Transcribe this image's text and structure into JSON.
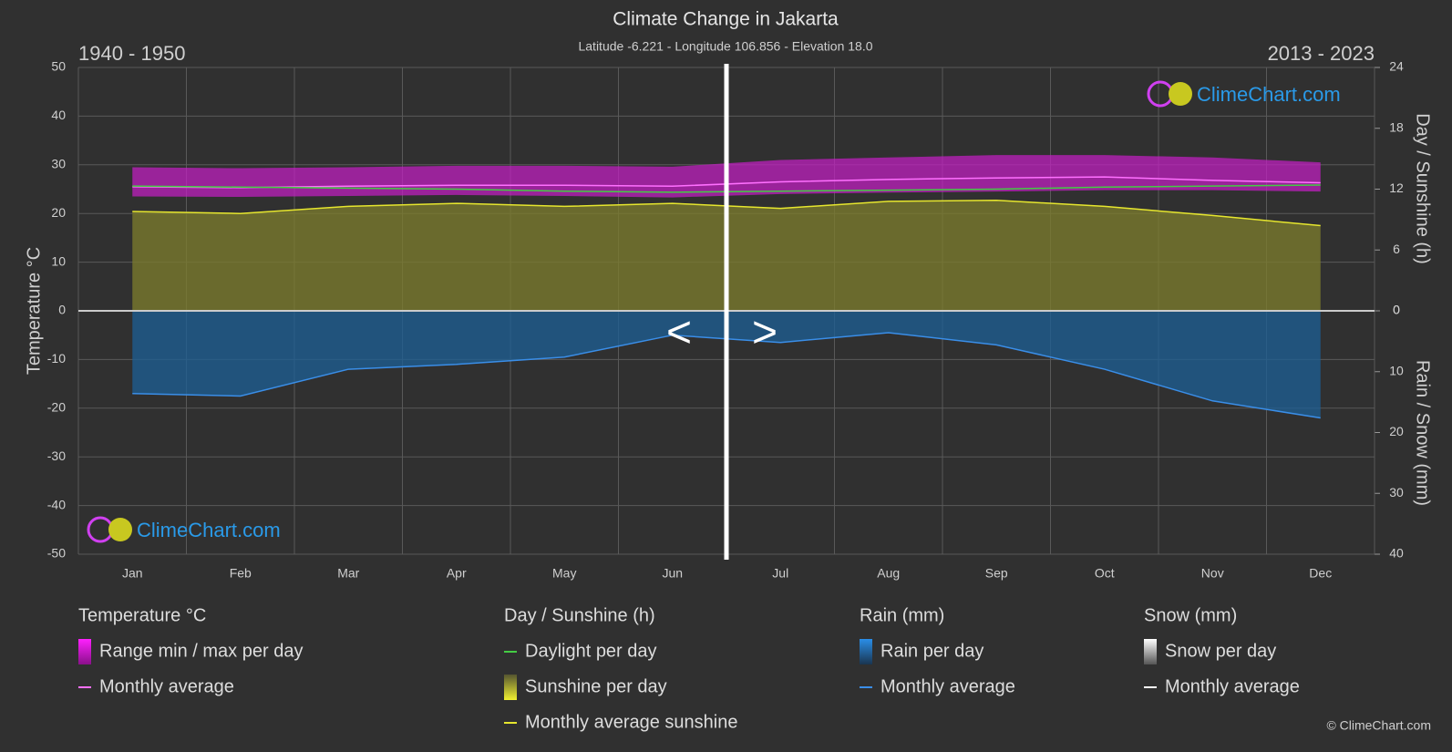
{
  "chart_data": {
    "type": "line",
    "title": "Climate Change in Jakarta",
    "subtitle": "Latitude -6.221 - Longitude 106.856 - Elevation 18.0",
    "period_left": "1940 - 1950",
    "period_right": "2013 - 2023",
    "watermark": "ClimeChart.com",
    "copyright": "© ClimeChart.com",
    "nav_prev": "<",
    "nav_next": ">",
    "ylabel": "Temperature °C",
    "y2label": "Day / Sunshine (h)",
    "y3label": "Rain / Snow (mm)",
    "categories": [
      "Jan",
      "Feb",
      "Mar",
      "Apr",
      "May",
      "Jun",
      "Jul",
      "Aug",
      "Sep",
      "Oct",
      "Nov",
      "Dec"
    ],
    "ylim": [
      -50,
      50
    ],
    "yticks": [
      -50,
      -40,
      -30,
      -20,
      -10,
      0,
      10,
      20,
      30,
      40,
      50
    ],
    "y2lim": [
      0,
      24
    ],
    "y2ticks": [
      0,
      6,
      12,
      18,
      24
    ],
    "y3lim": [
      0,
      40
    ],
    "y3ticks": [
      0,
      10,
      20,
      30,
      40
    ],
    "grid": true,
    "legend_groups": [
      "Temperature °C",
      "Day / Sunshine (h)",
      "Rain (mm)",
      "Snow (mm)"
    ],
    "series": [
      {
        "name": "Range min / max per day",
        "group": 0,
        "kind": "band",
        "color": "#c81ec8",
        "values": [
          29.5,
          29.3,
          29.5,
          29.8,
          29.8,
          29.6,
          31.0,
          31.5,
          32.0,
          32.0,
          31.5,
          30.5
        ],
        "low": [
          23.5,
          23.4,
          23.6,
          23.8,
          23.6,
          23.3,
          24.0,
          24.3,
          24.5,
          24.8,
          24.8,
          24.5
        ]
      },
      {
        "name": "Monthly average",
        "group": 0,
        "kind": "line",
        "color": "#ff70ff",
        "values": [
          25.5,
          25.3,
          25.6,
          25.8,
          25.8,
          25.6,
          26.5,
          27.0,
          27.3,
          27.5,
          26.8,
          26.3
        ]
      },
      {
        "name": "Daylight per day",
        "group": 1,
        "kind": "line",
        "axis": "y2",
        "color": "#44cc44",
        "values": [
          12.3,
          12.2,
          12.1,
          12.0,
          11.8,
          11.7,
          11.8,
          11.9,
          12.0,
          12.2,
          12.3,
          12.4
        ]
      },
      {
        "name": "Sunshine per day",
        "group": 1,
        "kind": "area",
        "axis": "y2",
        "color": "#7d7d2c",
        "values": [
          9.8,
          9.6,
          10.3,
          10.6,
          10.3,
          10.6,
          10.1,
          10.8,
          10.9,
          10.3,
          9.4,
          8.4
        ]
      },
      {
        "name": "Monthly average sunshine",
        "group": 1,
        "kind": "line",
        "axis": "y2",
        "color": "#e6e62e",
        "values": [
          9.8,
          9.6,
          10.3,
          10.6,
          10.3,
          10.6,
          10.1,
          10.8,
          10.9,
          10.3,
          9.4,
          8.4
        ]
      },
      {
        "name": "Rain per day",
        "group": 2,
        "kind": "area",
        "axis": "y3",
        "color": "#1c5f96",
        "values": [
          13.6,
          14.0,
          9.6,
          8.8,
          7.6,
          4.0,
          5.2,
          3.6,
          5.6,
          9.6,
          14.8,
          17.6
        ]
      },
      {
        "name": "Monthly average",
        "group": 2,
        "kind": "line",
        "axis": "y3",
        "color": "#3a8ee8",
        "values": [
          13.6,
          14.0,
          9.6,
          8.8,
          7.6,
          4.0,
          5.2,
          3.6,
          5.6,
          9.6,
          14.8,
          17.6
        ]
      },
      {
        "name": "Snow per day",
        "group": 3,
        "kind": "area",
        "axis": "y3",
        "color": "#cccccc",
        "values": [
          0,
          0,
          0,
          0,
          0,
          0,
          0,
          0,
          0,
          0,
          0,
          0
        ]
      },
      {
        "name": "Monthly average",
        "group": 3,
        "kind": "line",
        "axis": "y3",
        "color": "#ffffff",
        "values": [
          0,
          0,
          0,
          0,
          0,
          0,
          0,
          0,
          0,
          0,
          0,
          0
        ]
      }
    ]
  }
}
